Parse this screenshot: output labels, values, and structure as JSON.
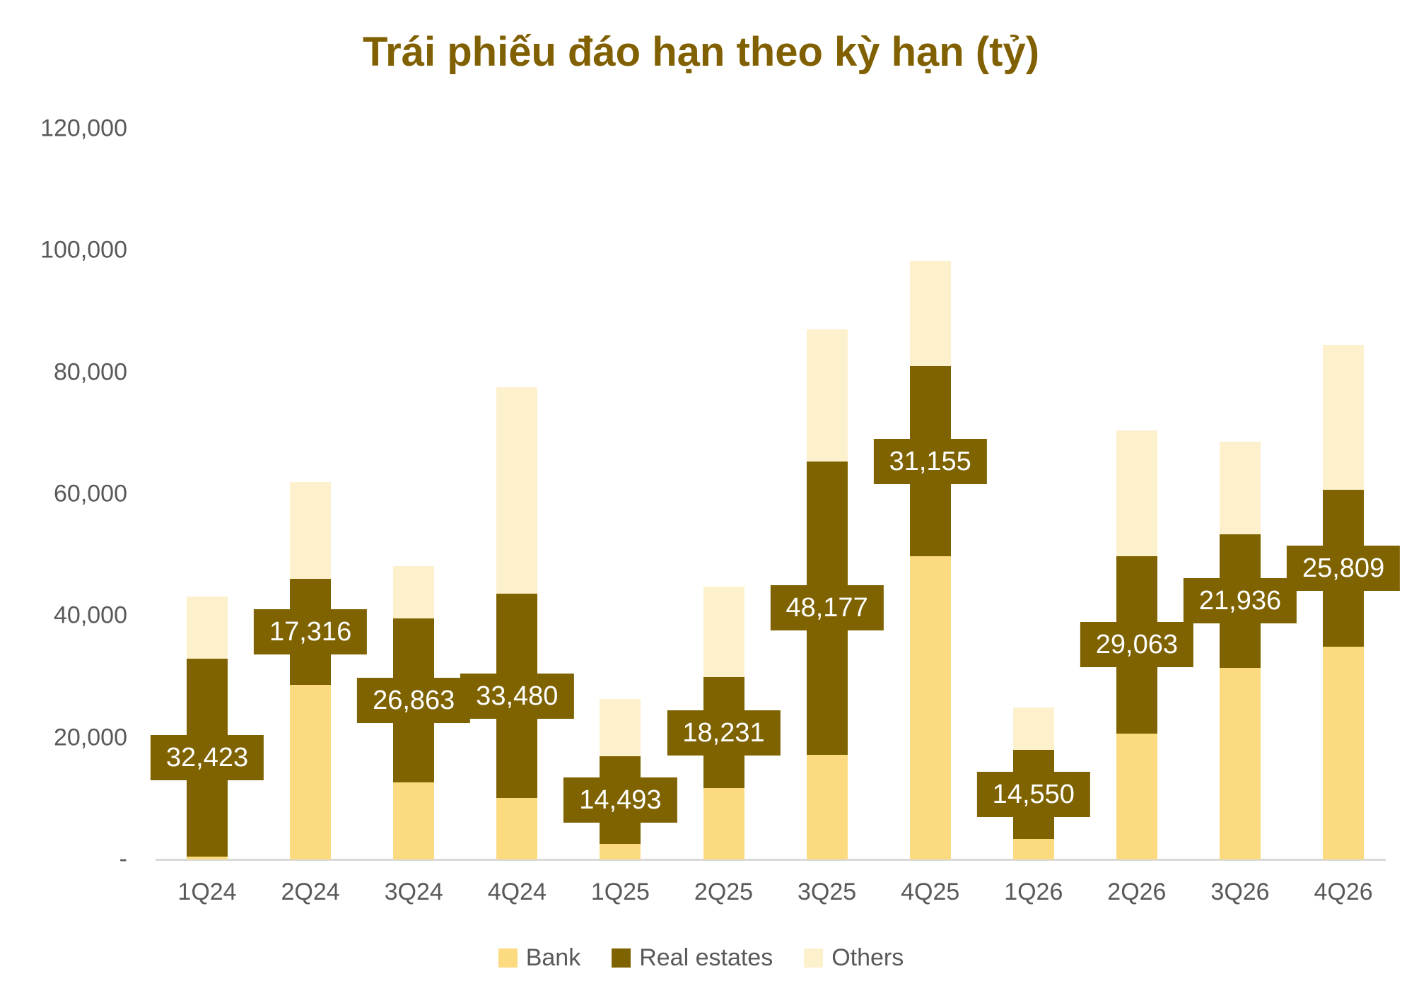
{
  "title": "Trái phiếu đáo hạn theo kỳ hạn (tỷ)",
  "colors": {
    "bank": "#FBDA80",
    "real_estates": "#7E6300",
    "others": "#FDF0CD",
    "title_text": "#806000",
    "axis_text": "#595959",
    "axis_line": "#D9D9D9",
    "data_label_text": "#FFFFFF"
  },
  "chart_data": {
    "type": "bar",
    "stacked": true,
    "grid": false,
    "legend_position": "bottom",
    "title": "Trái phiếu đáo hạn theo kỳ hạn (tỷ)",
    "xlabel": "",
    "ylabel": "",
    "ylim": [
      0,
      120000
    ],
    "y_ticks": [
      {
        "value": 0,
        "label": "-"
      },
      {
        "value": 20000,
        "label": "20,000"
      },
      {
        "value": 40000,
        "label": "40,000"
      },
      {
        "value": 60000,
        "label": "60,000"
      },
      {
        "value": 80000,
        "label": "80,000"
      },
      {
        "value": 100000,
        "label": "100,000"
      },
      {
        "value": 120000,
        "label": "120,000"
      }
    ],
    "categories": [
      "1Q24",
      "2Q24",
      "3Q24",
      "4Q24",
      "1Q25",
      "2Q25",
      "3Q25",
      "4Q25",
      "1Q26",
      "2Q26",
      "3Q26",
      "4Q26"
    ],
    "series": [
      {
        "name": "Bank",
        "color_key": "bank",
        "values": [
          500,
          28700,
          12700,
          10100,
          2500,
          11700,
          17200,
          49800,
          3400,
          20700,
          31500,
          34900
        ]
      },
      {
        "name": "Real estates",
        "color_key": "real_estates",
        "values": [
          32423,
          17316,
          26863,
          33480,
          14493,
          18231,
          48177,
          31155,
          14550,
          29063,
          21936,
          25809
        ],
        "data_labels": [
          "32,423",
          "17,316",
          "26,863",
          "33,480",
          "14,493",
          "18,231",
          "48,177",
          "31,155",
          "14,550",
          "29,063",
          "21,936",
          "25,809"
        ]
      },
      {
        "name": "Others",
        "color_key": "others",
        "values": [
          10300,
          15900,
          8600,
          33900,
          9400,
          14900,
          21700,
          17400,
          7000,
          20700,
          15200,
          23800
        ]
      }
    ],
    "legend": [
      "Bank",
      "Real estates",
      "Others"
    ]
  }
}
